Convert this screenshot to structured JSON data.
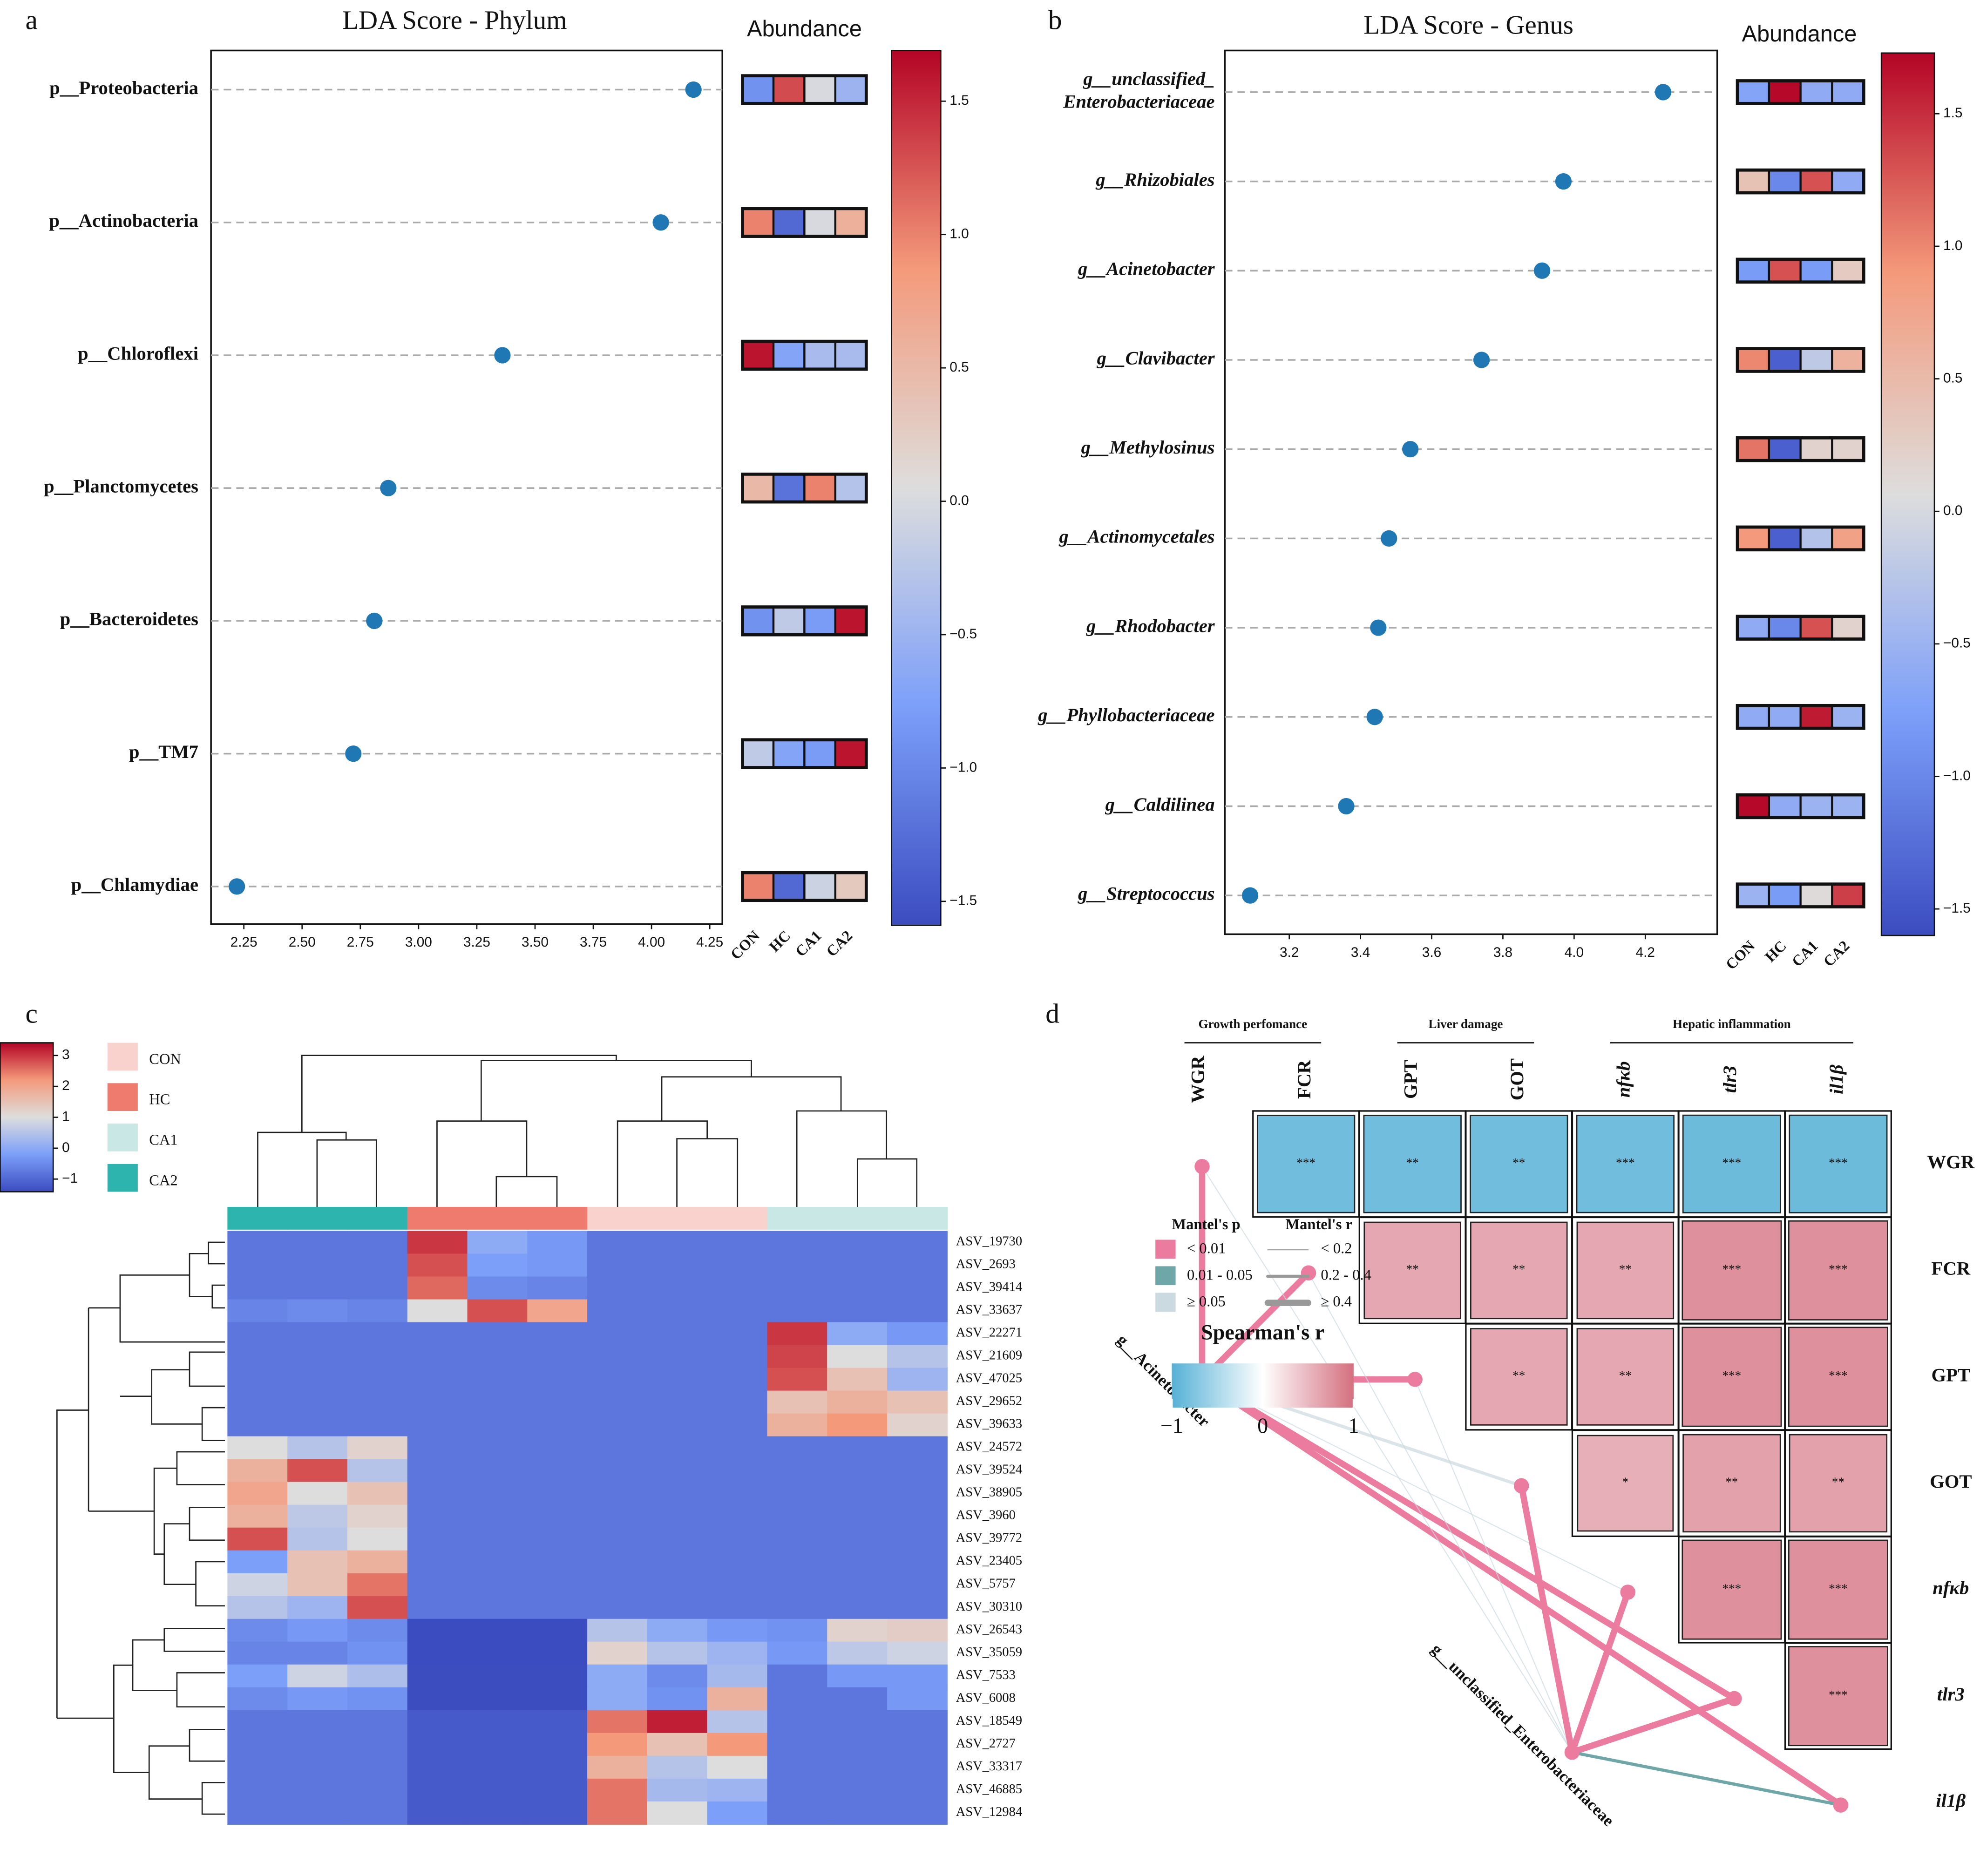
{
  "chart_data": [
    {
      "type": "lollipop",
      "panel_label": "a",
      "title": "LDA Score - Phylum",
      "label_style": "normal",
      "categories": [
        "p__Proteobacteria",
        "p__Actinobacteria",
        "p__Chloroflexi",
        "p__Planctomycetes",
        "p__Bacteroidetes",
        "p__TM7",
        "p__Chlamydiae"
      ],
      "values": [
        4.18,
        4.04,
        3.36,
        2.87,
        2.81,
        2.72,
        2.22
      ],
      "color": "#1f77b4",
      "xlim": [
        2.109,
        4.304
      ],
      "xticks": [
        2.25,
        {
          "value": 2.5,
          "label": "2.50"
        },
        2.75,
        {
          "value": 3,
          "label": "3.00"
        },
        3.25,
        {
          "value": 3.5,
          "label": "3.50"
        },
        3.75,
        {
          "value": 4,
          "label": "4.00"
        },
        4.25
      ],
      "heatmap": {
        "title": "Abundance",
        "columns": [
          "CON",
          "HC",
          "CA1",
          "CA2"
        ],
        "colormap": "coolwarm",
        "values": [
          [
            -0.9,
            1.3,
            0.0,
            -0.5
          ],
          [
            1.0,
            -1.3,
            0.0,
            0.6
          ],
          [
            1.6,
            -0.7,
            -0.4,
            -0.4
          ],
          [
            0.5,
            -1.2,
            1.0,
            -0.3
          ],
          [
            -0.9,
            -0.2,
            -0.8,
            1.6
          ],
          [
            -0.2,
            -0.7,
            -0.8,
            1.6
          ],
          [
            1.0,
            -1.3,
            -0.1,
            0.3
          ]
        ],
        "clim": [
          -1.59,
          1.69
        ],
        "cticks": [
          {
            "value": -1.5,
            "label": "−1.5"
          },
          {
            "value": -1,
            "label": "−1.0"
          },
          {
            "value": -0.5,
            "label": "−0.5"
          },
          {
            "value": 0,
            "label": "0.0"
          },
          0.5,
          {
            "value": 1,
            "label": "1.0"
          },
          1.5
        ]
      }
    },
    {
      "type": "lollipop",
      "panel_label": "b",
      "title": "LDA Score - Genus",
      "label_style": "italic",
      "categories": [
        "g__unclassified_ Enterobacteriaceae",
        "g__Rhizobiales",
        "g__Acinetobacter",
        "g__Clavibacter",
        "g__Methylosinus",
        "g__Actinomycetales",
        "g__Rhodobacter",
        "g__Phyllobacteriaceae",
        "g__Caldilinea",
        "g__Streptococcus"
      ],
      "values": [
        4.25,
        3.97,
        3.91,
        3.74,
        3.54,
        3.48,
        3.45,
        3.44,
        3.36,
        3.09
      ],
      "color": "#1f77b4",
      "xlim": [
        3.019,
        4.402
      ],
      "xticks": [
        3.2,
        3.4,
        3.6,
        3.8,
        {
          "value": 4,
          "label": "4.0"
        },
        4.2
      ],
      "heatmap": {
        "title": "Abundance",
        "columns": [
          "CON",
          "HC",
          "CA1",
          "CA2"
        ],
        "colormap": "coolwarm",
        "values": [
          [
            -0.7,
            1.7,
            -0.6,
            -0.6
          ],
          [
            0.4,
            -1.0,
            1.3,
            -0.6
          ],
          [
            -0.8,
            1.3,
            -0.8,
            0.3
          ],
          [
            1.0,
            -1.4,
            -0.2,
            0.6
          ],
          [
            1.1,
            -1.4,
            0.2,
            0.2
          ],
          [
            0.9,
            -1.4,
            -0.3,
            0.8
          ],
          [
            -0.6,
            -1.0,
            1.3,
            0.2
          ],
          [
            -0.6,
            -0.6,
            1.6,
            -0.5
          ],
          [
            1.7,
            -0.6,
            -0.5,
            -0.5
          ],
          [
            -0.5,
            -0.8,
            0.1,
            1.4
          ]
        ],
        "clim": [
          -1.6,
          1.729
        ],
        "cticks": [
          {
            "value": -1.5,
            "label": "−1.5"
          },
          {
            "value": -1,
            "label": "−1.0"
          },
          {
            "value": -0.5,
            "label": "−0.5"
          },
          {
            "value": 0,
            "label": "0.0"
          },
          0.5,
          {
            "value": 1,
            "label": "1.0"
          },
          1.5
        ]
      }
    },
    {
      "type": "heatmap",
      "panel_label": "c",
      "colormap": "coolwarm",
      "groups": [
        {
          "name": "CON",
          "color": "#f9d2cd"
        },
        {
          "name": "HC",
          "color": "#ee7b6e"
        },
        {
          "name": "CA1",
          "color": "#c9e7e5"
        },
        {
          "name": "CA2",
          "color": "#2db4ae"
        }
      ],
      "column_groups": [
        3,
        3,
        3,
        1,
        1,
        1,
        0,
        0,
        0,
        2,
        2,
        2
      ],
      "rows": [
        "ASV_19730",
        "ASV_2693",
        "ASV_39414",
        "ASV_33637",
        "ASV_22271",
        "ASV_21609",
        "ASV_47025",
        "ASV_29652",
        "ASV_39633",
        "ASV_24572",
        "ASV_39524",
        "ASV_38905",
        "ASV_3960",
        "ASV_39772",
        "ASV_23405",
        "ASV_5757",
        "ASV_30310",
        "ASV_26543",
        "ASV_35059",
        "ASV_7533",
        "ASV_6008",
        "ASV_18549",
        "ASV_2727",
        "ASV_33317",
        "ASV_46885",
        "ASV_12984"
      ],
      "highlight_rows": [
        0,
        1,
        2,
        3
      ],
      "highlight_color": "#e3201c",
      "values": [
        [
          -0.8,
          -0.8,
          -0.8,
          3.0,
          0.0,
          -0.3,
          -0.8,
          -0.8,
          -0.8,
          -0.8,
          -0.8,
          -0.8
        ],
        [
          -0.8,
          -0.8,
          -0.8,
          2.8,
          -0.2,
          -0.3,
          -0.8,
          -0.8,
          -0.8,
          -0.8,
          -0.8,
          -0.8
        ],
        [
          -0.8,
          -0.8,
          -0.8,
          2.6,
          -0.5,
          -0.6,
          -0.8,
          -0.8,
          -0.8,
          -0.8,
          -0.8,
          -0.8
        ],
        [
          -0.6,
          -0.5,
          -0.6,
          1.0,
          2.8,
          2.0,
          -0.8,
          -0.8,
          -0.8,
          -0.8,
          -0.8,
          -0.8
        ],
        [
          -0.8,
          -0.8,
          -0.8,
          -0.8,
          -0.8,
          -0.8,
          -0.8,
          -0.8,
          -0.8,
          3.0,
          0.0,
          -0.3
        ],
        [
          -0.8,
          -0.8,
          -0.8,
          -0.8,
          -0.8,
          -0.8,
          -0.8,
          -0.8,
          -0.8,
          2.9,
          1.0,
          0.5
        ],
        [
          -0.8,
          -0.8,
          -0.8,
          -0.8,
          -0.8,
          -0.8,
          -0.8,
          -0.8,
          -0.8,
          2.8,
          1.5,
          0.2
        ],
        [
          -0.8,
          -0.8,
          -0.8,
          -0.8,
          -0.8,
          -0.8,
          -0.8,
          -0.8,
          -0.8,
          1.5,
          1.8,
          1.5
        ],
        [
          -0.8,
          -0.8,
          -0.8,
          -0.8,
          -0.8,
          -0.8,
          -0.8,
          -0.8,
          -0.8,
          1.8,
          2.2,
          1.2
        ],
        [
          1.0,
          0.5,
          1.2,
          -0.8,
          -0.8,
          -0.8,
          -0.8,
          -0.8,
          -0.8,
          -0.8,
          -0.8,
          -0.8
        ],
        [
          1.8,
          2.8,
          0.5,
          -0.8,
          -0.8,
          -0.8,
          -0.8,
          -0.8,
          -0.8,
          -0.8,
          -0.8,
          -0.8
        ],
        [
          2.0,
          1.0,
          1.5,
          -0.8,
          -0.8,
          -0.8,
          -0.8,
          -0.8,
          -0.8,
          -0.8,
          -0.8,
          -0.8
        ],
        [
          1.8,
          0.6,
          1.2,
          -0.8,
          -0.8,
          -0.8,
          -0.8,
          -0.8,
          -0.8,
          -0.8,
          -0.8,
          -0.8
        ],
        [
          2.8,
          0.5,
          1.0,
          -0.8,
          -0.8,
          -0.8,
          -0.8,
          -0.8,
          -0.8,
          -0.8,
          -0.8,
          -0.8
        ],
        [
          -0.2,
          1.5,
          1.8,
          -0.8,
          -0.8,
          -0.8,
          -0.8,
          -0.8,
          -0.8,
          -0.8,
          -0.8,
          -0.8
        ],
        [
          0.8,
          1.5,
          2.5,
          -0.8,
          -0.8,
          -0.8,
          -0.8,
          -0.8,
          -0.8,
          -0.8,
          -0.8,
          -0.8
        ],
        [
          0.5,
          0.2,
          2.8,
          -0.8,
          -0.8,
          -0.8,
          -0.8,
          -0.8,
          -0.8,
          -0.8,
          -0.8,
          -0.8
        ],
        [
          -0.5,
          -0.3,
          -0.5,
          -1.5,
          -1.5,
          -1.5,
          0.5,
          0.0,
          -0.3,
          -0.4,
          1.2,
          1.3
        ],
        [
          -0.6,
          -0.6,
          -0.4,
          -1.5,
          -1.5,
          -1.5,
          1.2,
          0.5,
          0.2,
          -0.3,
          0.6,
          0.8
        ],
        [
          -0.2,
          0.8,
          0.4,
          -1.4,
          -1.4,
          -1.4,
          0.0,
          -0.5,
          0.3,
          -0.8,
          -0.3,
          -0.3
        ],
        [
          -0.5,
          -0.3,
          -0.4,
          -1.4,
          -1.4,
          -1.4,
          0.0,
          -0.4,
          1.8,
          -0.8,
          -0.8,
          -0.3
        ],
        [
          -0.8,
          -0.8,
          -0.8,
          -1.2,
          -1.2,
          -1.2,
          2.5,
          3.2,
          0.5,
          -0.8,
          -0.8,
          -0.8
        ],
        [
          -0.8,
          -0.8,
          -0.8,
          -1.2,
          -1.2,
          -1.2,
          2.2,
          1.5,
          2.2,
          -0.8,
          -0.8,
          -0.8
        ],
        [
          -0.8,
          -0.8,
          -0.8,
          -1.2,
          -1.2,
          -1.2,
          1.8,
          0.5,
          1.0,
          -0.8,
          -0.8,
          -0.8
        ],
        [
          -0.8,
          -0.8,
          -0.8,
          -1.2,
          -1.2,
          -1.2,
          2.5,
          0.3,
          0.2,
          -0.8,
          -0.8,
          -0.8
        ],
        [
          -0.8,
          -0.8,
          -0.8,
          -1.2,
          -1.2,
          -1.2,
          2.5,
          1.0,
          -0.2,
          -0.8,
          -0.8,
          -0.8
        ]
      ],
      "clim": [
        -1.41,
        3.41
      ],
      "cticks": [
        3,
        2,
        1,
        0,
        {
          "value": -1,
          "label": "−1"
        }
      ]
    },
    {
      "type": "mantel",
      "panel_label": "d",
      "variables": [
        "WGR",
        "FCR",
        "GPT",
        "GOT",
        "nfκb",
        "tlr3",
        "il1β"
      ],
      "italic_variables": [
        4,
        5,
        6
      ],
      "variable_groups": [
        {
          "name": "Growth perfomance",
          "from": 0,
          "to": 1
        },
        {
          "name": "Liver damage",
          "from": 2,
          "to": 3
        },
        {
          "name": "Hepatic inflammation",
          "from": 4,
          "to": 6
        }
      ],
      "cells": [
        {
          "row": 0,
          "col": 1,
          "r": -0.6,
          "label": "***"
        },
        {
          "row": 0,
          "col": 2,
          "r": -0.6,
          "label": "**"
        },
        {
          "row": 0,
          "col": 3,
          "r": -0.6,
          "label": "**"
        },
        {
          "row": 0,
          "col": 4,
          "r": -0.6,
          "label": "***"
        },
        {
          "row": 0,
          "col": 5,
          "r": -0.62,
          "label": "***"
        },
        {
          "row": 0,
          "col": 6,
          "r": -0.62,
          "label": "***"
        },
        {
          "row": 1,
          "col": 2,
          "r": 0.55,
          "label": "**"
        },
        {
          "row": 1,
          "col": 3,
          "r": 0.55,
          "label": "**"
        },
        {
          "row": 1,
          "col": 4,
          "r": 0.55,
          "label": "**"
        },
        {
          "row": 1,
          "col": 5,
          "r": 0.7,
          "label": "***"
        },
        {
          "row": 1,
          "col": 6,
          "r": 0.7,
          "label": "***"
        },
        {
          "row": 2,
          "col": 3,
          "r": 0.55,
          "label": "**"
        },
        {
          "row": 2,
          "col": 4,
          "r": 0.55,
          "label": "**"
        },
        {
          "row": 2,
          "col": 5,
          "r": 0.7,
          "label": "***"
        },
        {
          "row": 2,
          "col": 6,
          "r": 0.7,
          "label": "***"
        },
        {
          "row": 3,
          "col": 4,
          "r": 0.5,
          "label": "*"
        },
        {
          "row": 3,
          "col": 5,
          "r": 0.6,
          "label": "**"
        },
        {
          "row": 3,
          "col": 6,
          "r": 0.6,
          "label": "**"
        },
        {
          "row": 4,
          "col": 5,
          "r": 0.7,
          "label": "***"
        },
        {
          "row": 4,
          "col": 6,
          "r": 0.7,
          "label": "***"
        },
        {
          "row": 5,
          "col": 6,
          "r": 0.7,
          "label": "***"
        }
      ],
      "cell_colors": {
        "negative": "#56b1d6",
        "positive": "#d4707f"
      },
      "sources": [
        "g__Acinetobacter",
        "g__unclassified_Enterobacteriaceae"
      ],
      "links": [
        {
          "source": 0,
          "target": 0,
          "p": 0,
          "r": 2
        },
        {
          "source": 0,
          "target": 1,
          "p": 0,
          "r": 2
        },
        {
          "source": 0,
          "target": 2,
          "p": 0,
          "r": 2
        },
        {
          "source": 0,
          "target": 3,
          "p": 2,
          "r": 1
        },
        {
          "source": 0,
          "target": 4,
          "p": 2,
          "r": 0
        },
        {
          "source": 0,
          "target": 5,
          "p": 0,
          "r": 2
        },
        {
          "source": 0,
          "target": 6,
          "p": 0,
          "r": 2
        },
        {
          "source": 1,
          "target": 0,
          "p": 2,
          "r": 0
        },
        {
          "source": 1,
          "target": 1,
          "p": 2,
          "r": 0
        },
        {
          "source": 1,
          "target": 2,
          "p": 2,
          "r": 0
        },
        {
          "source": 1,
          "target": 3,
          "p": 0,
          "r": 2
        },
        {
          "source": 1,
          "target": 4,
          "p": 0,
          "r": 2
        },
        {
          "source": 1,
          "target": 5,
          "p": 0,
          "r": 2
        },
        {
          "source": 1,
          "target": 6,
          "p": 1,
          "r": 1
        }
      ],
      "node_color": "#ec7ba0",
      "mantel_p": {
        "title": "Mantel's p",
        "labels": [
          "< 0.01",
          "0.01 - 0.05",
          "≥ 0.05"
        ],
        "colors": [
          "#ec7ba0",
          "#6fa7a8",
          "#cbd9e0"
        ]
      },
      "mantel_r": {
        "title": "Mantel's r",
        "labels": [
          "< 0.2",
          "0.2 - 0.4",
          "≥ 0.4"
        ],
        "widths": [
          0.8,
          2.5,
          5
        ]
      },
      "spearman": {
        "title": "Spearman's r",
        "lim": [
          -1,
          1
        ],
        "ticks": [
          {
            "value": -1,
            "label": "−1"
          },
          0,
          1
        ]
      }
    }
  ]
}
